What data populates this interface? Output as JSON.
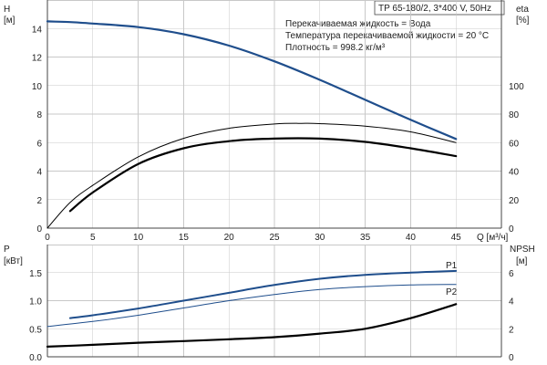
{
  "header": {
    "model": "TP 65-180/2, 3*400 V, 50Hz",
    "liquid_line": "Перекачиваемая жидкость = Вода",
    "temperature_line": "Температура перекачиваемой жидкости = 20 °C",
    "density_line": "Плотность = 998.2 кг/м³"
  },
  "chart_data": [
    {
      "type": "line",
      "panel": "head-efficiency",
      "x_axis": {
        "label": "Q [м³/ч]",
        "ticks": [
          0,
          5,
          10,
          15,
          20,
          25,
          30,
          35,
          40,
          45
        ],
        "lim": [
          0,
          50
        ]
      },
      "y_left": {
        "label_top": "H",
        "label_unit": "[м]",
        "ticks": [
          0,
          2,
          4,
          6,
          8,
          10,
          12,
          14
        ],
        "lim": [
          0,
          16
        ]
      },
      "y_right": {
        "label_top": "eta",
        "label_unit": "[%]",
        "ticks": [
          0,
          20,
          40,
          60,
          80,
          100
        ],
        "lim": [
          0,
          160
        ]
      },
      "grid": true,
      "series": [
        {
          "key": "head",
          "axis": "left",
          "color": "#1f4e8c",
          "width": 2.2,
          "points": [
            [
              0,
              14.5
            ],
            [
              2.5,
              14.45
            ],
            [
              5,
              14.35
            ],
            [
              10,
              14.1
            ],
            [
              15,
              13.6
            ],
            [
              20,
              12.8
            ],
            [
              25,
              11.7
            ],
            [
              30,
              10.4
            ],
            [
              35,
              9.0
            ],
            [
              40,
              7.6
            ],
            [
              45,
              6.25
            ]
          ]
        },
        {
          "key": "efficiency-thin",
          "axis": "right",
          "color": "#000000",
          "width": 1.0,
          "points": [
            [
              0,
              0
            ],
            [
              2.5,
              18
            ],
            [
              5,
              30
            ],
            [
              10,
              50
            ],
            [
              15,
              63
            ],
            [
              20,
              70
            ],
            [
              25,
              73
            ],
            [
              28,
              73.5
            ],
            [
              30,
              73.3
            ],
            [
              35,
              71.5
            ],
            [
              40,
              67.5
            ],
            [
              45,
              60
            ]
          ]
        },
        {
          "key": "efficiency-thick",
          "axis": "right",
          "color": "#000000",
          "width": 2.2,
          "points": [
            [
              2.5,
              12
            ],
            [
              5,
              25
            ],
            [
              10,
              45
            ],
            [
              15,
              56
            ],
            [
              20,
              61
            ],
            [
              25,
              62.8
            ],
            [
              30,
              62.8
            ],
            [
              35,
              60.5
            ],
            [
              40,
              56
            ],
            [
              45,
              50.5
            ]
          ]
        }
      ]
    },
    {
      "type": "line",
      "panel": "power-npsh",
      "x_axis": {
        "lim": [
          0,
          50
        ]
      },
      "y_left": {
        "label_top": "P",
        "label_unit": "[кВт]",
        "ticks": [
          "0.0",
          "0.5",
          "1.0",
          "1.5"
        ],
        "lim": [
          0,
          2.0
        ]
      },
      "y_right": {
        "label_top": "NPSH",
        "label_unit": "[м]",
        "ticks": [
          0,
          2,
          4,
          6
        ],
        "lim": [
          0,
          8
        ]
      },
      "grid": true,
      "series": [
        {
          "key": "p1",
          "name": "P1",
          "axis": "left",
          "color": "#1f4e8c",
          "width": 2.0,
          "points": [
            [
              2.5,
              0.69
            ],
            [
              5,
              0.74
            ],
            [
              10,
              0.86
            ],
            [
              15,
              1.0
            ],
            [
              20,
              1.14
            ],
            [
              25,
              1.28
            ],
            [
              30,
              1.39
            ],
            [
              35,
              1.46
            ],
            [
              40,
              1.5
            ],
            [
              45,
              1.53
            ]
          ]
        },
        {
          "key": "p2",
          "name": "P2",
          "axis": "left",
          "color": "#1f4e8c",
          "width": 1.0,
          "points": [
            [
              0,
              0.54
            ],
            [
              5,
              0.63
            ],
            [
              10,
              0.74
            ],
            [
              15,
              0.87
            ],
            [
              20,
              1.0
            ],
            [
              25,
              1.11
            ],
            [
              30,
              1.2
            ],
            [
              35,
              1.25
            ],
            [
              40,
              1.28
            ],
            [
              45,
              1.29
            ]
          ]
        },
        {
          "key": "npsh",
          "axis": "right",
          "color": "#000000",
          "width": 2.2,
          "points": [
            [
              0,
              0.72
            ],
            [
              5,
              0.85
            ],
            [
              10,
              1.0
            ],
            [
              15,
              1.12
            ],
            [
              20,
              1.25
            ],
            [
              25,
              1.4
            ],
            [
              30,
              1.65
            ],
            [
              35,
              2.0
            ],
            [
              40,
              2.75
            ],
            [
              45,
              3.75
            ]
          ]
        }
      ]
    }
  ]
}
